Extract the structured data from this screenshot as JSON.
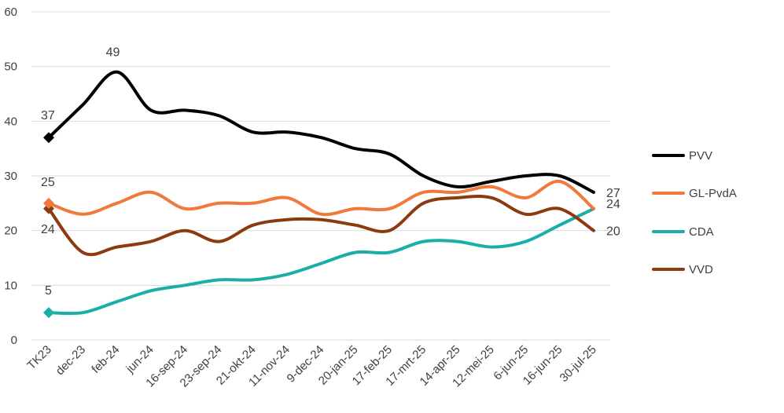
{
  "chart_data": {
    "type": "line",
    "categories": [
      "TK23",
      "dec-23",
      "feb-24",
      "jun-24",
      "16-sep-24",
      "23-sep-24",
      "21-okt-24",
      "11-nov-24",
      "9-dec-24",
      "20-jan-25",
      "17-feb-25",
      "17-mrt-25",
      "14-apr-25",
      "12-mei-25",
      "6-jun-25",
      "16-jun-25",
      "30-jul-25"
    ],
    "ylim": [
      0,
      60
    ],
    "yticks": [
      "0",
      "10",
      "20",
      "30",
      "40",
      "50",
      "60"
    ],
    "grid": true,
    "legend_position": "right",
    "series": [
      {
        "name": "PVV",
        "color": "#000000",
        "values": [
          37,
          43,
          49,
          42,
          42,
          41,
          38,
          38,
          37,
          35,
          34,
          30,
          28,
          29,
          30,
          30,
          27
        ],
        "start_label": "37",
        "peak_label": "49",
        "end_label": "27"
      },
      {
        "name": "GL-PvdA",
        "color": "#f0793b",
        "values": [
          25,
          23,
          25,
          27,
          24,
          25,
          25,
          26,
          23,
          24,
          24,
          27,
          27,
          28,
          26,
          29,
          24
        ],
        "start_label": "25",
        "end_label": "24"
      },
      {
        "name": "CDA",
        "color": "#1aafa6",
        "values": [
          5,
          5,
          7,
          9,
          10,
          11,
          11,
          12,
          14,
          16,
          16,
          18,
          18,
          17,
          18,
          21,
          24
        ],
        "start_label": "5",
        "end_label": "24"
      },
      {
        "name": "VVD",
        "color": "#8c3a10",
        "values": [
          24,
          16,
          17,
          18,
          20,
          18,
          21,
          22,
          22,
          21,
          20,
          25,
          26,
          26,
          23,
          24,
          20
        ],
        "start_label": "24",
        "end_label": "20"
      }
    ]
  }
}
